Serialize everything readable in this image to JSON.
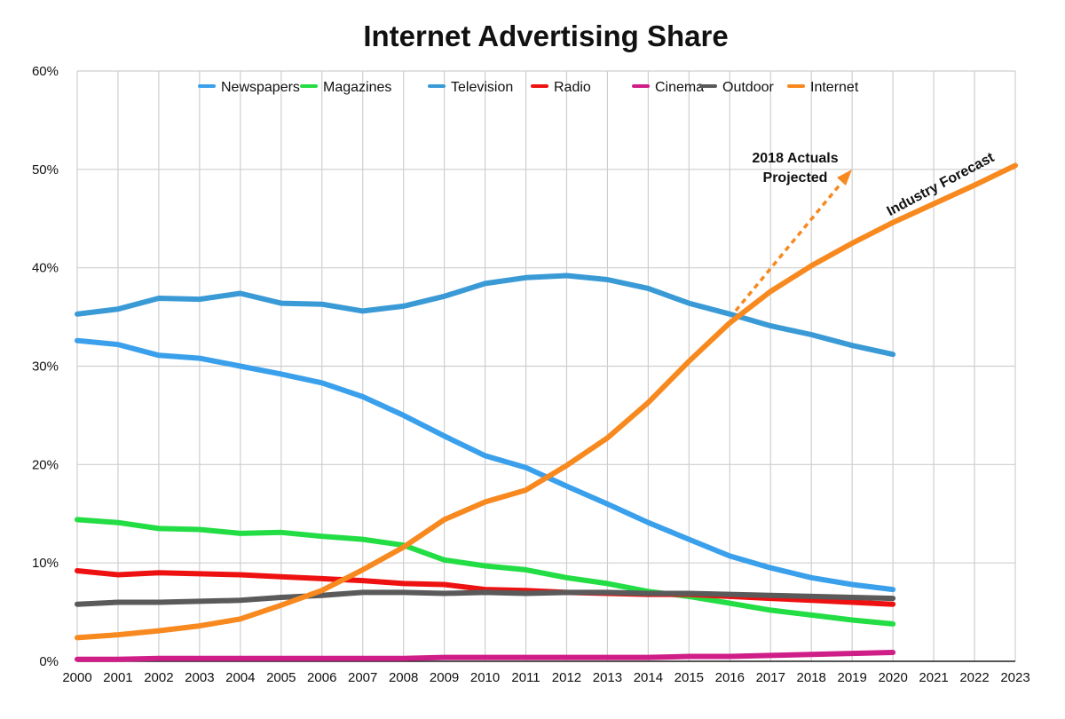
{
  "chart_data": {
    "type": "line",
    "title": "Internet Advertising Share",
    "xlabel": "",
    "ylabel": "",
    "x": [
      "2000",
      "2001",
      "2002",
      "2003",
      "2004",
      "2005",
      "2006",
      "2007",
      "2008",
      "2009",
      "2010",
      "2011",
      "2012",
      "2013",
      "2014",
      "2015",
      "2016",
      "2017",
      "2018",
      "2019",
      "2020",
      "2021",
      "2022",
      "2023"
    ],
    "ylim": [
      0,
      60
    ],
    "yticks": [
      "0%",
      "10%",
      "20%",
      "30%",
      "40%",
      "50%",
      "60%"
    ],
    "grid": true,
    "legend_position": "top",
    "series": [
      {
        "name": "Newspapers",
        "color": "#3aa0ec",
        "values": [
          32.6,
          32.2,
          31.1,
          30.8,
          30.0,
          29.2,
          28.3,
          26.9,
          25.0,
          22.9,
          20.9,
          19.7,
          17.8,
          16.0,
          14.1,
          12.4,
          10.7,
          9.5,
          8.5,
          7.8,
          7.3,
          null,
          null,
          null
        ]
      },
      {
        "name": "Magazines",
        "color": "#22dd44",
        "values": [
          14.4,
          14.1,
          13.5,
          13.4,
          13.0,
          13.1,
          12.7,
          12.4,
          11.8,
          10.3,
          9.7,
          9.3,
          8.5,
          7.9,
          7.1,
          6.6,
          5.9,
          5.2,
          4.7,
          4.2,
          3.8,
          null,
          null,
          null
        ]
      },
      {
        "name": "Television",
        "color": "#3a9ad6",
        "values": [
          35.3,
          35.8,
          36.9,
          36.8,
          37.4,
          36.4,
          36.3,
          35.6,
          36.1,
          37.1,
          38.4,
          39.0,
          39.2,
          38.8,
          37.9,
          36.4,
          35.3,
          34.1,
          33.2,
          32.1,
          31.2,
          null,
          null,
          null
        ]
      },
      {
        "name": "Radio",
        "color": "#ee1111",
        "values": [
          9.2,
          8.8,
          9.0,
          8.9,
          8.8,
          8.6,
          8.4,
          8.2,
          7.9,
          7.8,
          7.3,
          7.2,
          7.0,
          6.9,
          6.8,
          6.8,
          6.6,
          6.4,
          6.2,
          6.0,
          5.8,
          null,
          null,
          null
        ]
      },
      {
        "name": "Cinema",
        "color": "#d01e88",
        "values": [
          0.2,
          0.2,
          0.3,
          0.3,
          0.3,
          0.3,
          0.3,
          0.3,
          0.3,
          0.4,
          0.4,
          0.4,
          0.4,
          0.4,
          0.4,
          0.5,
          0.5,
          0.6,
          0.7,
          0.8,
          0.9,
          null,
          null,
          null
        ]
      },
      {
        "name": "Outdoor",
        "color": "#5a5a5a",
        "values": [
          5.8,
          6.0,
          6.0,
          6.1,
          6.2,
          6.5,
          6.7,
          7.0,
          7.0,
          6.9,
          7.0,
          6.9,
          7.0,
          7.0,
          6.9,
          6.9,
          6.8,
          6.7,
          6.6,
          6.5,
          6.4,
          null,
          null,
          null
        ]
      },
      {
        "name": "Internet",
        "color": "#f7891f",
        "values": [
          2.4,
          2.7,
          3.1,
          3.6,
          4.3,
          5.7,
          7.2,
          9.3,
          11.6,
          14.4,
          16.2,
          17.4,
          19.9,
          22.7,
          26.3,
          30.5,
          34.4,
          37.6,
          40.2,
          42.5,
          44.6,
          46.5,
          48.4,
          50.4
        ]
      }
    ],
    "annotations": {
      "projection_line1": "2018 Actuals",
      "projection_line2": "Projected",
      "forecast": "Industry Forecast"
    }
  }
}
